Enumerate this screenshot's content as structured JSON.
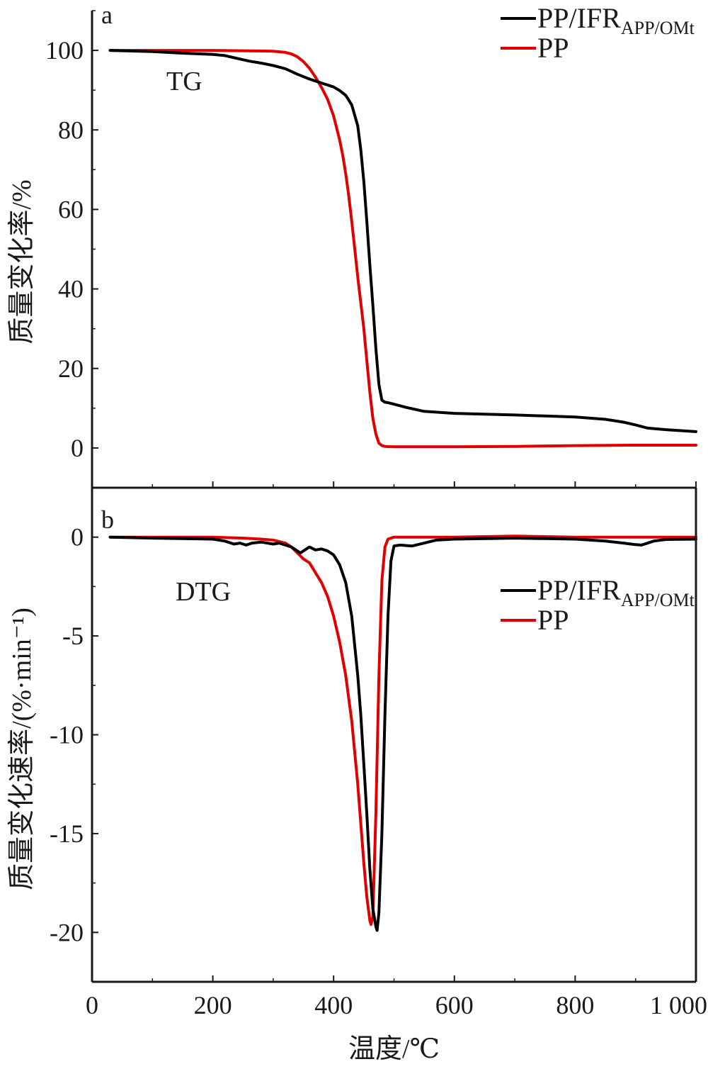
{
  "chart_data": [
    {
      "panel": "a",
      "type": "line",
      "curve_label": "TG",
      "ylabel": "质量变化率/%",
      "xlim": [
        0,
        1000
      ],
      "ylim": [
        -10,
        110
      ],
      "yticks": [
        0,
        20,
        40,
        60,
        80,
        100
      ],
      "ytick_labels": [
        "0",
        "20",
        "40",
        "60",
        "80",
        "100"
      ],
      "legend_position": "top-right",
      "series": [
        {
          "name": "PP/IFR",
          "name_subscript": "APP/OMt",
          "color": "#000000",
          "x": [
            30,
            100,
            150,
            200,
            220,
            240,
            260,
            280,
            300,
            320,
            340,
            360,
            380,
            400,
            410,
            420,
            430,
            440,
            445,
            450,
            455,
            460,
            465,
            470,
            475,
            480,
            485,
            490,
            500,
            520,
            550,
            600,
            700,
            800,
            850,
            880,
            900,
            920,
            950,
            1000
          ],
          "y": [
            100,
            99.7,
            99.3,
            99,
            98.7,
            98,
            97.3,
            96.8,
            96.2,
            95.4,
            94,
            92.8,
            91.8,
            90.8,
            89.9,
            88.7,
            86.3,
            81,
            75,
            67,
            57,
            46,
            36,
            25,
            16,
            12,
            11.5,
            11.4,
            11,
            10.2,
            9.2,
            8.7,
            8.3,
            7.8,
            7.2,
            6.5,
            5.8,
            5,
            4.6,
            4.1
          ]
        },
        {
          "name": "PP",
          "name_subscript": "",
          "color": "#e00000",
          "x": [
            30,
            100,
            200,
            250,
            300,
            320,
            330,
            340,
            350,
            360,
            370,
            380,
            390,
            400,
            410,
            415,
            420,
            425,
            430,
            435,
            440,
            445,
            450,
            455,
            460,
            465,
            470,
            475,
            480,
            485,
            490,
            500,
            600,
            700,
            800,
            900,
            1000
          ],
          "y": [
            100,
            100,
            100,
            99.9,
            99.8,
            99.5,
            99.1,
            98.4,
            97.2,
            95.5,
            93.3,
            90.7,
            87.7,
            83.5,
            77.5,
            73.7,
            69,
            63.5,
            57,
            50,
            43,
            36.5,
            30,
            22,
            14,
            7.5,
            3.5,
            1.2,
            0.6,
            0.4,
            0.35,
            0.3,
            0.3,
            0.4,
            0.6,
            0.7,
            0.7
          ]
        }
      ]
    },
    {
      "panel": "b",
      "type": "line",
      "curve_label": "DTG",
      "ylabel": "质量变化速率/(%·min⁻¹)",
      "xlabel": "温度/℃",
      "xlim": [
        0,
        1000
      ],
      "ylim": [
        -22.5,
        2.5
      ],
      "xticks": [
        0,
        200,
        400,
        600,
        800,
        1000
      ],
      "xtick_labels": [
        "0",
        "200",
        "400",
        "600",
        "800",
        "1 000"
      ],
      "yticks": [
        0,
        -5,
        -10,
        -15,
        -20
      ],
      "ytick_labels": [
        "0",
        "-5",
        "-10",
        "-15",
        "-20"
      ],
      "legend_position": "upper-right",
      "series": [
        {
          "name": "PP/IFR",
          "name_subscript": "APP/OMt",
          "color": "#000000",
          "x": [
            30,
            100,
            200,
            220,
            235,
            245,
            255,
            265,
            280,
            300,
            310,
            320,
            330,
            340,
            345,
            350,
            360,
            370,
            380,
            390,
            400,
            410,
            420,
            430,
            440,
            445,
            450,
            455,
            460,
            465,
            470,
            472,
            475,
            480,
            485,
            490,
            495,
            500,
            510,
            530,
            550,
            570,
            600,
            700,
            800,
            850,
            880,
            900,
            910,
            930,
            950,
            1000
          ],
          "y": [
            0,
            -0.05,
            -0.1,
            -0.2,
            -0.35,
            -0.3,
            -0.4,
            -0.3,
            -0.25,
            -0.35,
            -0.3,
            -0.4,
            -0.5,
            -0.7,
            -0.8,
            -0.7,
            -0.5,
            -0.65,
            -0.6,
            -0.7,
            -0.9,
            -1.4,
            -2.3,
            -4,
            -7,
            -9,
            -11.5,
            -14,
            -16.8,
            -18.8,
            -19.7,
            -19.9,
            -19,
            -15,
            -9,
            -4,
            -1.2,
            -0.45,
            -0.4,
            -0.45,
            -0.3,
            -0.15,
            -0.1,
            -0.05,
            -0.1,
            -0.2,
            -0.3,
            -0.38,
            -0.4,
            -0.2,
            -0.12,
            -0.1
          ]
        },
        {
          "name": "PP",
          "name_subscript": "",
          "color": "#e00000",
          "x": [
            30,
            100,
            200,
            250,
            280,
            300,
            320,
            330,
            340,
            350,
            360,
            370,
            380,
            390,
            400,
            410,
            420,
            430,
            440,
            445,
            450,
            455,
            460,
            462,
            465,
            470,
            475,
            480,
            485,
            490,
            500,
            600,
            700,
            800,
            900,
            1000
          ],
          "y": [
            0,
            0,
            0,
            -0.05,
            -0.1,
            -0.15,
            -0.3,
            -0.5,
            -0.8,
            -1.1,
            -1.3,
            -1.8,
            -2.3,
            -3,
            -4,
            -5.3,
            -7,
            -9.3,
            -12.5,
            -14.5,
            -16.5,
            -18.2,
            -19.4,
            -19.6,
            -19.2,
            -14,
            -7,
            -2.2,
            -0.5,
            -0.1,
            0,
            0,
            0.05,
            0,
            0,
            0
          ]
        }
      ]
    }
  ]
}
